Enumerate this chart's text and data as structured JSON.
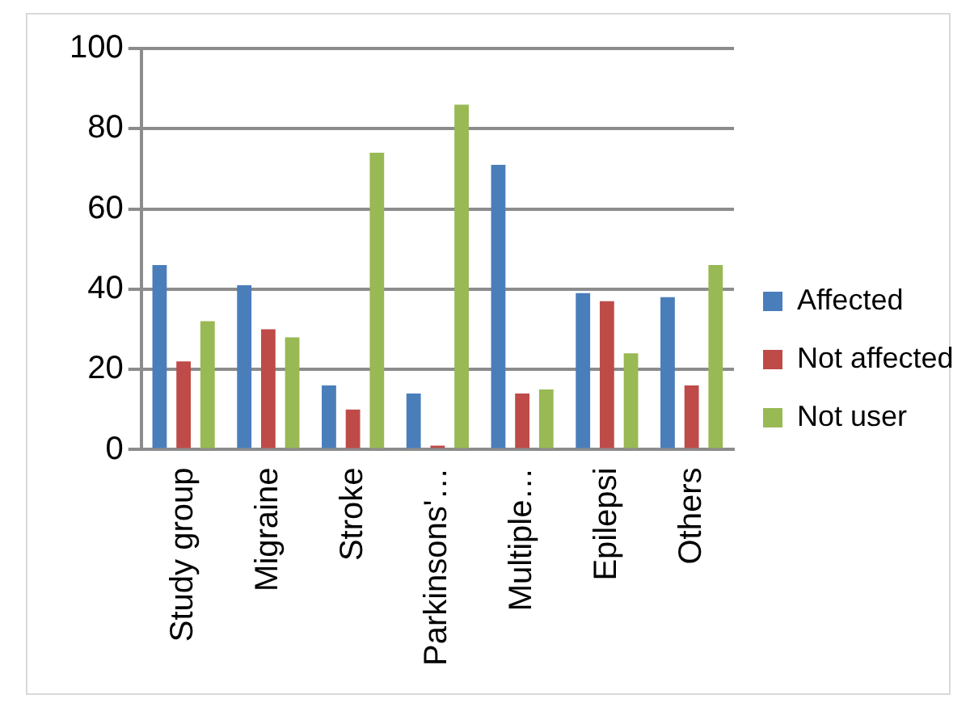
{
  "chart_data": {
    "type": "bar",
    "categories": [
      "Study group",
      "Migraine",
      "Stroke",
      "Parkinsons'…",
      "Multiple…",
      "Epilepsi",
      "Others"
    ],
    "series": [
      {
        "name": "Affected",
        "color": "#4a7ebb",
        "values": [
          46,
          41,
          16,
          14,
          71,
          39,
          38
        ]
      },
      {
        "name": "Not affected",
        "color": "#be4b48",
        "values": [
          22,
          30,
          10,
          1,
          14,
          37,
          16
        ]
      },
      {
        "name": "Not user",
        "color": "#98b954",
        "values": [
          32,
          28,
          74,
          86,
          15,
          24,
          46
        ]
      }
    ],
    "ylim": [
      0,
      100
    ],
    "yticks": [
      0,
      20,
      40,
      60,
      80,
      100
    ],
    "grid": "y",
    "legend": "right"
  }
}
